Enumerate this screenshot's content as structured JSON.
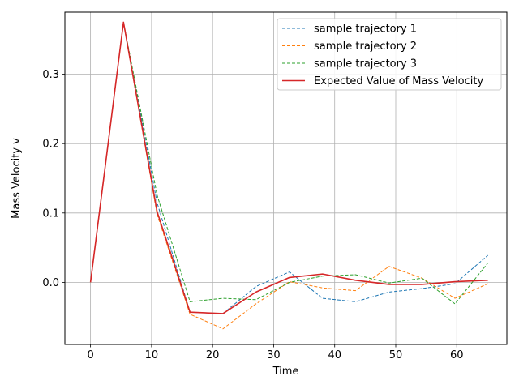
{
  "chart_data": {
    "type": "line",
    "title": "",
    "xlabel": "Time",
    "ylabel": "Mass Velocity v",
    "xlim": [
      -4.2,
      68.2
    ],
    "ylim": [
      -0.0895,
      0.3895
    ],
    "x_ticks": [
      0,
      10,
      20,
      30,
      40,
      50,
      60
    ],
    "x_tick_labels": [
      "0",
      "10",
      "20",
      "30",
      "40",
      "50",
      "60"
    ],
    "y_ticks": [
      0.0,
      0.1,
      0.2,
      0.3
    ],
    "y_tick_labels": [
      "0.0",
      "0.1",
      "0.2",
      "0.3"
    ],
    "grid": true,
    "legend_position": "top-right",
    "x": [
      0,
      5.4,
      10.9,
      16.3,
      21.7,
      27.1,
      32.6,
      38.0,
      43.4,
      48.9,
      54.3,
      59.7,
      65.1
    ],
    "series": [
      {
        "name": "sample trajectory 1",
        "color": "#1f77b4",
        "style": "dashed",
        "values": [
          0.0,
          0.375,
          0.115,
          -0.043,
          -0.045,
          -0.006,
          0.015,
          -0.023,
          -0.028,
          -0.014,
          -0.009,
          -0.002,
          0.039
        ]
      },
      {
        "name": "sample trajectory 2",
        "color": "#ff7f0e",
        "style": "dashed",
        "values": [
          0.0,
          0.375,
          0.098,
          -0.046,
          -0.067,
          -0.031,
          0.001,
          -0.008,
          -0.012,
          0.023,
          0.006,
          -0.023,
          -0.002
        ]
      },
      {
        "name": "sample trajectory 3",
        "color": "#2ca02c",
        "style": "dashed",
        "values": [
          0.0,
          0.375,
          0.126,
          -0.028,
          -0.023,
          -0.025,
          0.0,
          0.009,
          0.011,
          -0.001,
          0.006,
          -0.031,
          0.028
        ]
      },
      {
        "name": "Expected Value of Mass Velocity",
        "color": "#d62728",
        "style": "solid",
        "values": [
          0.0,
          0.375,
          0.102,
          -0.043,
          -0.045,
          -0.014,
          0.007,
          0.012,
          0.003,
          -0.003,
          -0.003,
          0.001,
          0.003
        ]
      }
    ]
  }
}
